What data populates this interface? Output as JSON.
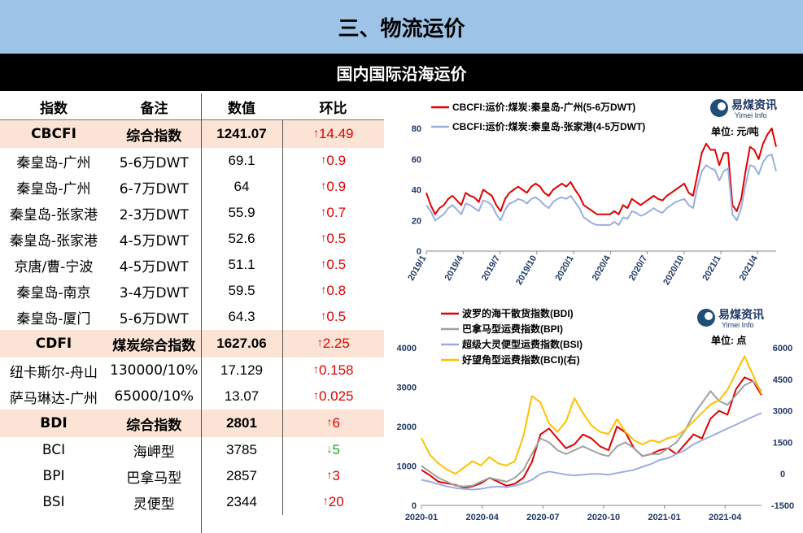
{
  "header": {
    "title": "三、物流运价",
    "subtitle": "国内国际沿海运价"
  },
  "table": {
    "columns": [
      "指数",
      "备注",
      "数值",
      "环比"
    ],
    "rows": [
      {
        "section": true,
        "name": "CBCFI",
        "note": "综合指数",
        "value": "1241.07",
        "dir": "up",
        "change": "14.49"
      },
      {
        "name": "秦皇岛-广州",
        "note": "5-6万DWT",
        "value": "69.1",
        "dir": "up",
        "change": "0.9"
      },
      {
        "name": "秦皇岛-广州",
        "note": "6-7万DWT",
        "value": "64",
        "dir": "up",
        "change": "0.9"
      },
      {
        "name": "秦皇岛-张家港",
        "note": "2-3万DWT",
        "value": "55.9",
        "dir": "up",
        "change": "0.7"
      },
      {
        "name": "秦皇岛-张家港",
        "note": "4-5万DWT",
        "value": "52.6",
        "dir": "up",
        "change": "0.5"
      },
      {
        "name": "京唐/曹-宁波",
        "note": "4-5万DWT",
        "value": "51.1",
        "dir": "up",
        "change": "0.5"
      },
      {
        "name": "秦皇岛-南京",
        "note": "3-4万DWT",
        "value": "59.5",
        "dir": "up",
        "change": "0.8"
      },
      {
        "name": "秦皇岛-厦门",
        "note": "5-6万DWT",
        "value": "64.3",
        "dir": "up",
        "change": "0.5"
      },
      {
        "section": true,
        "name": "CDFI",
        "note": "煤炭综合指数",
        "value": "1627.06",
        "dir": "up",
        "change": "2.25"
      },
      {
        "name": "纽卡斯尔-舟山",
        "note": "130000/10%",
        "value": "17.129",
        "dir": "up",
        "change": "0.158"
      },
      {
        "name": "萨马琳达-广州",
        "note": "65000/10%",
        "value": "13.07",
        "dir": "up",
        "change": "0.025"
      },
      {
        "section": true,
        "name": "BDI",
        "note": "综合指数",
        "value": "2801",
        "dir": "up",
        "change": "6"
      },
      {
        "name": "BCI",
        "note": "海岬型",
        "value": "3785",
        "dir": "down",
        "change": "5"
      },
      {
        "name": "BPI",
        "note": "巴拿马型",
        "value": "2857",
        "dir": "up",
        "change": "3"
      },
      {
        "name": "BSI",
        "note": "灵便型",
        "value": "2344",
        "dir": "up",
        "change": "20"
      }
    ]
  },
  "arrows": {
    "up": "↑",
    "down": "↓"
  },
  "chart_data": [
    {
      "type": "line",
      "unit": "单位: 元/吨",
      "logo": {
        "cn": "易煤资讯",
        "en": "Yimei Info"
      },
      "ylim": [
        0,
        80
      ],
      "yticks": [
        "0",
        "20",
        "40",
        "60",
        "80"
      ],
      "xticks": [
        "2019/1",
        "2019/4",
        "2019/7",
        "2019/10",
        "2020/1",
        "2020/4",
        "2020/7",
        "2020/10",
        "2021/1",
        "2021/4"
      ],
      "series": [
        {
          "name": "CBCFI:运价:煤炭:秦皇岛-广州(5-6万DWT)",
          "color": "#e00000",
          "values": [
            38,
            30,
            24,
            28,
            30,
            34,
            36,
            33,
            30,
            38,
            36,
            35,
            32,
            40,
            38,
            36,
            30,
            26,
            34,
            38,
            40,
            42,
            40,
            38,
            42,
            44,
            42,
            38,
            36,
            40,
            42,
            44,
            42,
            45,
            40,
            36,
            30,
            28,
            26,
            24,
            24,
            24,
            24,
            26,
            24,
            30,
            28,
            34,
            32,
            30,
            32,
            34,
            36,
            34,
            33,
            36,
            38,
            40,
            42,
            44,
            38,
            36,
            50,
            64,
            70,
            66,
            66,
            56,
            64,
            64,
            30,
            26,
            34,
            52,
            68,
            66,
            60,
            70,
            76,
            80,
            68
          ]
        },
        {
          "name": "CBCFI:运价:煤炭:秦皇岛-张家港(4-5万DWT)",
          "color": "#9aaee0",
          "values": [
            30,
            26,
            20,
            22,
            24,
            28,
            30,
            27,
            24,
            31,
            30,
            28,
            26,
            33,
            32,
            30,
            24,
            20,
            27,
            31,
            32,
            34,
            33,
            31,
            34,
            35,
            33,
            30,
            28,
            32,
            34,
            35,
            34,
            36,
            32,
            28,
            22,
            20,
            18,
            17,
            17,
            17,
            17,
            19,
            17,
            22,
            21,
            26,
            25,
            23,
            24,
            26,
            28,
            26,
            25,
            28,
            30,
            32,
            33,
            34,
            30,
            28,
            42,
            52,
            56,
            54,
            53,
            46,
            52,
            54,
            24,
            20,
            28,
            43,
            56,
            55,
            50,
            58,
            62,
            63,
            52
          ]
        }
      ]
    },
    {
      "type": "line",
      "unit": "单位: 点",
      "logo": {
        "cn": "易煤资讯",
        "en": "Yimei Info"
      },
      "ylim": [
        0,
        4000
      ],
      "yticks": [
        "0",
        "1000",
        "2000",
        "3000",
        "4000"
      ],
      "y2lim": [
        -1500,
        6000
      ],
      "y2ticks": [
        "-1500",
        "0",
        "1500",
        "3000",
        "4500",
        "6000"
      ],
      "xticks": [
        "2020-01",
        "2020-04",
        "2020-07",
        "2020-10",
        "2021-01",
        "2021-04"
      ],
      "series": [
        {
          "name": "波罗的海干散货指数(BDI)",
          "color": "#e00000",
          "axis": "left",
          "values": [
            900,
            760,
            600,
            560,
            520,
            450,
            480,
            560,
            700,
            600,
            500,
            550,
            700,
            1100,
            1800,
            1950,
            1700,
            1450,
            1550,
            1800,
            1700,
            1500,
            1400,
            2000,
            1850,
            1450,
            1250,
            1300,
            1400,
            1450,
            1300,
            1550,
            1800,
            1700,
            2200,
            2400,
            2300,
            2950,
            3250,
            3150,
            2800
          ]
        },
        {
          "name": "巴拿马型运费指数(BPI)",
          "color": "#a0a0a0",
          "axis": "left",
          "values": [
            1000,
            850,
            700,
            600,
            500,
            480,
            500,
            600,
            700,
            650,
            600,
            700,
            900,
            1300,
            1700,
            1600,
            1400,
            1300,
            1400,
            1500,
            1400,
            1300,
            1250,
            1500,
            1600,
            1450,
            1250,
            1300,
            1300,
            1450,
            1600,
            1900,
            2300,
            2600,
            2900,
            2650,
            2550,
            2800,
            3050,
            3150,
            2900
          ]
        },
        {
          "name": "超级大灵便型运费指数(BSI)",
          "color": "#9aaee0",
          "axis": "left",
          "values": [
            650,
            600,
            540,
            480,
            440,
            420,
            400,
            420,
            460,
            480,
            460,
            500,
            560,
            650,
            800,
            860,
            820,
            780,
            760,
            780,
            800,
            800,
            780,
            820,
            860,
            900,
            980,
            1050,
            1150,
            1200,
            1300,
            1400,
            1550,
            1650,
            1750,
            1850,
            1950,
            2050,
            2150,
            2250,
            2344
          ]
        },
        {
          "name": "好望角型运费指数(BCI)(右)",
          "color": "#ffc000",
          "axis": "right",
          "values": [
            1700,
            900,
            500,
            200,
            0,
            300,
            600,
            400,
            800,
            500,
            400,
            600,
            1800,
            3700,
            3400,
            2400,
            2000,
            2500,
            3600,
            2900,
            2300,
            2000,
            1900,
            2600,
            2000,
            1600,
            1400,
            1600,
            1500,
            1700,
            1800,
            2100,
            2500,
            2900,
            3300,
            3500,
            4000,
            4800,
            5600,
            4700,
            3800
          ]
        }
      ]
    }
  ]
}
